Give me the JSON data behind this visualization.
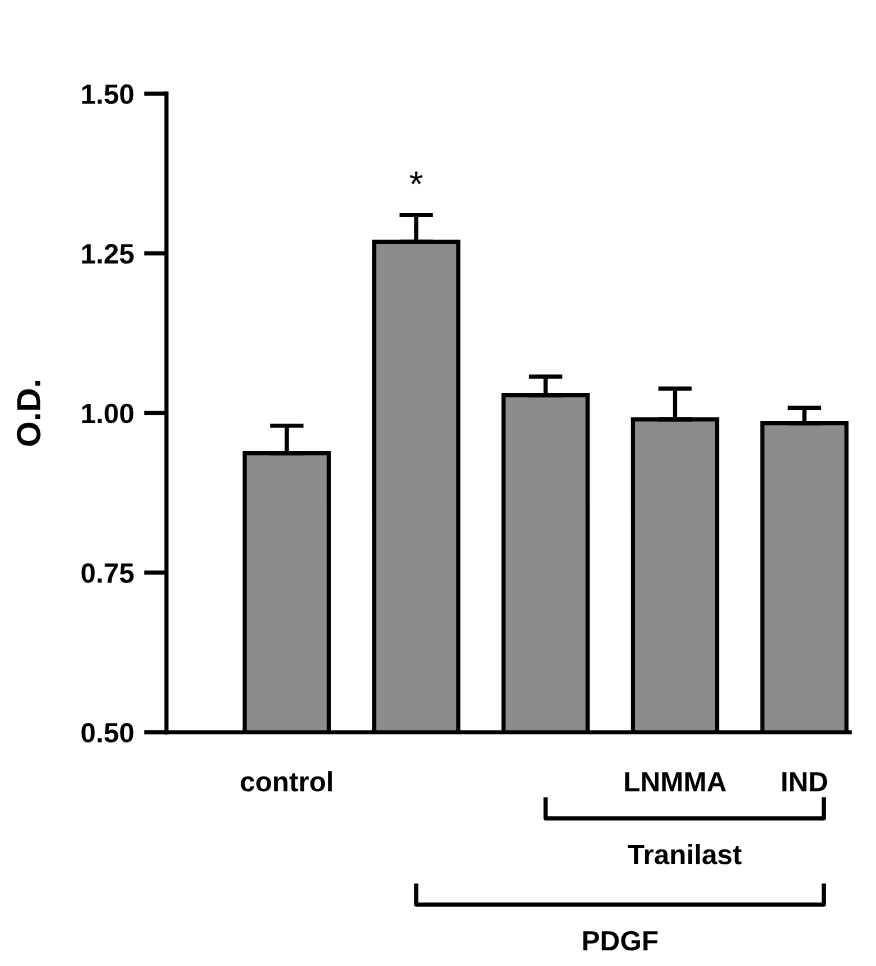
{
  "chart_data": {
    "type": "bar",
    "ylabel": "O.D.",
    "categories": [
      "control",
      null,
      null,
      "LNMMA",
      "IND"
    ],
    "values": [
      0.937,
      1.268,
      1.028,
      0.99,
      0.984
    ],
    "errors": [
      [
        0.937,
        0.98
      ],
      [
        1.268,
        1.31
      ],
      [
        1.028,
        1.057
      ],
      [
        0.99,
        1.038
      ],
      [
        0.984,
        1.008
      ]
    ],
    "color": "#8c8c8c",
    "ylim": [
      0.5,
      1.5
    ],
    "yticks": [
      {
        "value": 0.5,
        "label": "0.50"
      },
      {
        "value": 0.75,
        "label": "0.75"
      },
      {
        "value": 1.0,
        "label": "1.00"
      },
      {
        "value": 1.25,
        "label": "1.25"
      },
      {
        "value": 1.5,
        "label": "1.50"
      }
    ],
    "annotations": [
      "*",
      "Tranilast",
      "PDGF"
    ],
    "grid": false
  }
}
